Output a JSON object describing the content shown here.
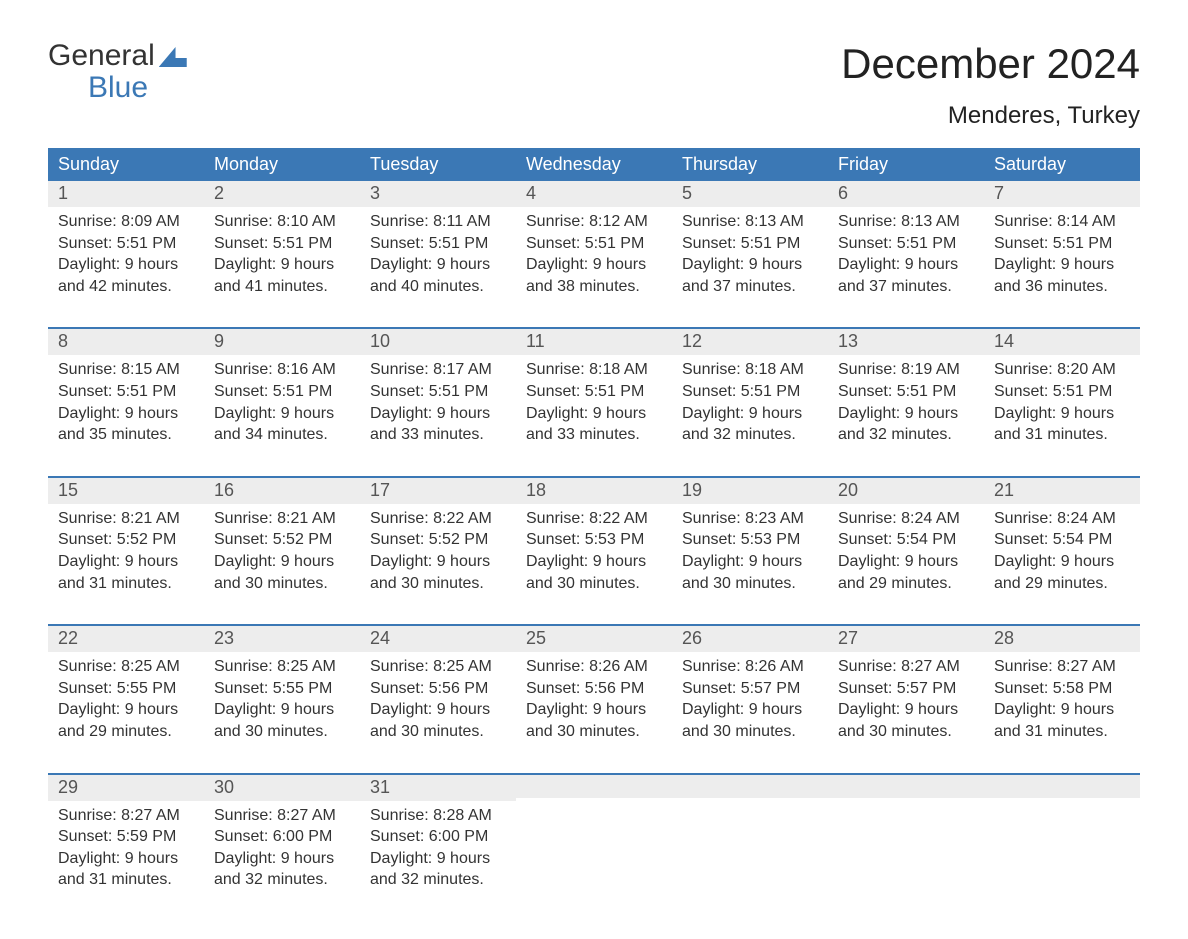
{
  "brand": {
    "word1": "General",
    "word2": "Blue"
  },
  "header": {
    "title": "December 2024",
    "location": "Menderes, Turkey"
  },
  "colors": {
    "accent": "#3b78b5",
    "daynum_bg": "#ededed",
    "text": "#333333",
    "background": "#ffffff"
  },
  "dow": [
    "Sunday",
    "Monday",
    "Tuesday",
    "Wednesday",
    "Thursday",
    "Friday",
    "Saturday"
  ],
  "weeks": [
    [
      {
        "n": "1",
        "sr": "Sunrise: 8:09 AM",
        "ss": "Sunset: 5:51 PM",
        "d1": "Daylight: 9 hours",
        "d2": "and 42 minutes."
      },
      {
        "n": "2",
        "sr": "Sunrise: 8:10 AM",
        "ss": "Sunset: 5:51 PM",
        "d1": "Daylight: 9 hours",
        "d2": "and 41 minutes."
      },
      {
        "n": "3",
        "sr": "Sunrise: 8:11 AM",
        "ss": "Sunset: 5:51 PM",
        "d1": "Daylight: 9 hours",
        "d2": "and 40 minutes."
      },
      {
        "n": "4",
        "sr": "Sunrise: 8:12 AM",
        "ss": "Sunset: 5:51 PM",
        "d1": "Daylight: 9 hours",
        "d2": "and 38 minutes."
      },
      {
        "n": "5",
        "sr": "Sunrise: 8:13 AM",
        "ss": "Sunset: 5:51 PM",
        "d1": "Daylight: 9 hours",
        "d2": "and 37 minutes."
      },
      {
        "n": "6",
        "sr": "Sunrise: 8:13 AM",
        "ss": "Sunset: 5:51 PM",
        "d1": "Daylight: 9 hours",
        "d2": "and 37 minutes."
      },
      {
        "n": "7",
        "sr": "Sunrise: 8:14 AM",
        "ss": "Sunset: 5:51 PM",
        "d1": "Daylight: 9 hours",
        "d2": "and 36 minutes."
      }
    ],
    [
      {
        "n": "8",
        "sr": "Sunrise: 8:15 AM",
        "ss": "Sunset: 5:51 PM",
        "d1": "Daylight: 9 hours",
        "d2": "and 35 minutes."
      },
      {
        "n": "9",
        "sr": "Sunrise: 8:16 AM",
        "ss": "Sunset: 5:51 PM",
        "d1": "Daylight: 9 hours",
        "d2": "and 34 minutes."
      },
      {
        "n": "10",
        "sr": "Sunrise: 8:17 AM",
        "ss": "Sunset: 5:51 PM",
        "d1": "Daylight: 9 hours",
        "d2": "and 33 minutes."
      },
      {
        "n": "11",
        "sr": "Sunrise: 8:18 AM",
        "ss": "Sunset: 5:51 PM",
        "d1": "Daylight: 9 hours",
        "d2": "and 33 minutes."
      },
      {
        "n": "12",
        "sr": "Sunrise: 8:18 AM",
        "ss": "Sunset: 5:51 PM",
        "d1": "Daylight: 9 hours",
        "d2": "and 32 minutes."
      },
      {
        "n": "13",
        "sr": "Sunrise: 8:19 AM",
        "ss": "Sunset: 5:51 PM",
        "d1": "Daylight: 9 hours",
        "d2": "and 32 minutes."
      },
      {
        "n": "14",
        "sr": "Sunrise: 8:20 AM",
        "ss": "Sunset: 5:51 PM",
        "d1": "Daylight: 9 hours",
        "d2": "and 31 minutes."
      }
    ],
    [
      {
        "n": "15",
        "sr": "Sunrise: 8:21 AM",
        "ss": "Sunset: 5:52 PM",
        "d1": "Daylight: 9 hours",
        "d2": "and 31 minutes."
      },
      {
        "n": "16",
        "sr": "Sunrise: 8:21 AM",
        "ss": "Sunset: 5:52 PM",
        "d1": "Daylight: 9 hours",
        "d2": "and 30 minutes."
      },
      {
        "n": "17",
        "sr": "Sunrise: 8:22 AM",
        "ss": "Sunset: 5:52 PM",
        "d1": "Daylight: 9 hours",
        "d2": "and 30 minutes."
      },
      {
        "n": "18",
        "sr": "Sunrise: 8:22 AM",
        "ss": "Sunset: 5:53 PM",
        "d1": "Daylight: 9 hours",
        "d2": "and 30 minutes."
      },
      {
        "n": "19",
        "sr": "Sunrise: 8:23 AM",
        "ss": "Sunset: 5:53 PM",
        "d1": "Daylight: 9 hours",
        "d2": "and 30 minutes."
      },
      {
        "n": "20",
        "sr": "Sunrise: 8:24 AM",
        "ss": "Sunset: 5:54 PM",
        "d1": "Daylight: 9 hours",
        "d2": "and 29 minutes."
      },
      {
        "n": "21",
        "sr": "Sunrise: 8:24 AM",
        "ss": "Sunset: 5:54 PM",
        "d1": "Daylight: 9 hours",
        "d2": "and 29 minutes."
      }
    ],
    [
      {
        "n": "22",
        "sr": "Sunrise: 8:25 AM",
        "ss": "Sunset: 5:55 PM",
        "d1": "Daylight: 9 hours",
        "d2": "and 29 minutes."
      },
      {
        "n": "23",
        "sr": "Sunrise: 8:25 AM",
        "ss": "Sunset: 5:55 PM",
        "d1": "Daylight: 9 hours",
        "d2": "and 30 minutes."
      },
      {
        "n": "24",
        "sr": "Sunrise: 8:25 AM",
        "ss": "Sunset: 5:56 PM",
        "d1": "Daylight: 9 hours",
        "d2": "and 30 minutes."
      },
      {
        "n": "25",
        "sr": "Sunrise: 8:26 AM",
        "ss": "Sunset: 5:56 PM",
        "d1": "Daylight: 9 hours",
        "d2": "and 30 minutes."
      },
      {
        "n": "26",
        "sr": "Sunrise: 8:26 AM",
        "ss": "Sunset: 5:57 PM",
        "d1": "Daylight: 9 hours",
        "d2": "and 30 minutes."
      },
      {
        "n": "27",
        "sr": "Sunrise: 8:27 AM",
        "ss": "Sunset: 5:57 PM",
        "d1": "Daylight: 9 hours",
        "d2": "and 30 minutes."
      },
      {
        "n": "28",
        "sr": "Sunrise: 8:27 AM",
        "ss": "Sunset: 5:58 PM",
        "d1": "Daylight: 9 hours",
        "d2": "and 31 minutes."
      }
    ],
    [
      {
        "n": "29",
        "sr": "Sunrise: 8:27 AM",
        "ss": "Sunset: 5:59 PM",
        "d1": "Daylight: 9 hours",
        "d2": "and 31 minutes."
      },
      {
        "n": "30",
        "sr": "Sunrise: 8:27 AM",
        "ss": "Sunset: 6:00 PM",
        "d1": "Daylight: 9 hours",
        "d2": "and 32 minutes."
      },
      {
        "n": "31",
        "sr": "Sunrise: 8:28 AM",
        "ss": "Sunset: 6:00 PM",
        "d1": "Daylight: 9 hours",
        "d2": "and 32 minutes."
      },
      null,
      null,
      null,
      null
    ]
  ]
}
